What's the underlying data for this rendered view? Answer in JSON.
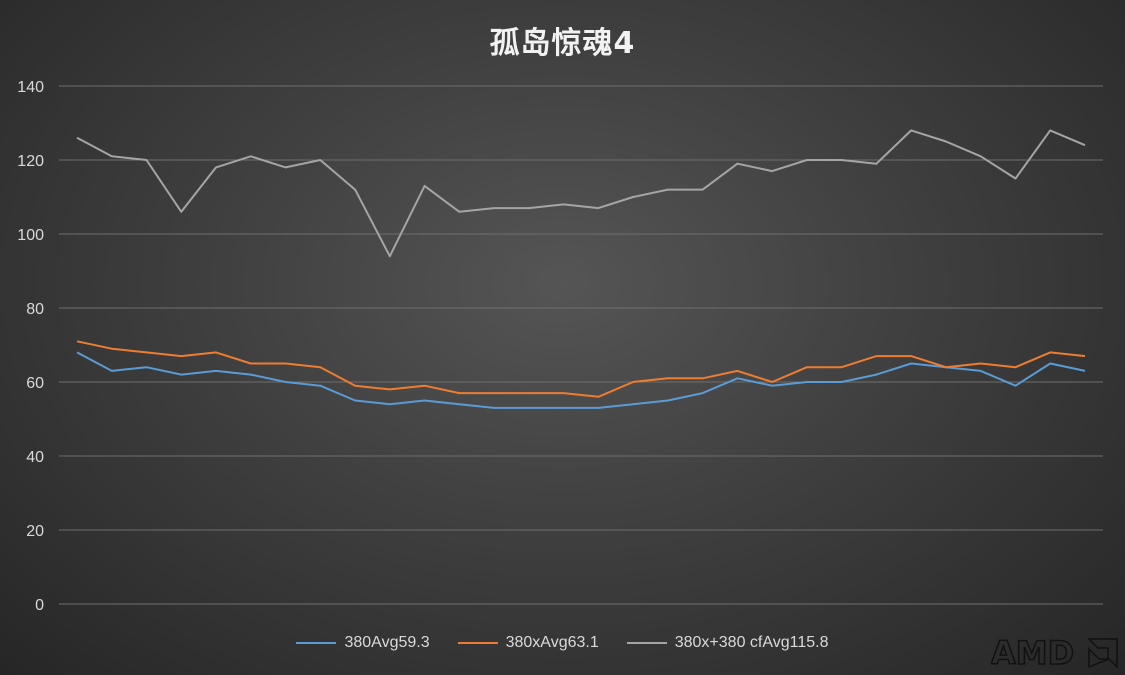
{
  "chart_data": {
    "type": "line",
    "title": "孤岛惊魂4",
    "ylim": [
      0,
      140
    ],
    "yticks": [
      0,
      20,
      40,
      60,
      80,
      100,
      120,
      140
    ],
    "grid": true,
    "legend_position": "bottom",
    "x": [
      1,
      2,
      3,
      4,
      5,
      6,
      7,
      8,
      9,
      10,
      11,
      12,
      13,
      14,
      15,
      16,
      17,
      18,
      19,
      20,
      21,
      22,
      23,
      24,
      25,
      26,
      27,
      28,
      29,
      30
    ],
    "series": [
      {
        "name": "380Avg59.3",
        "color": "#5b9bd5",
        "values": [
          68,
          63,
          64,
          62,
          63,
          62,
          60,
          59,
          55,
          54,
          55,
          54,
          53,
          53,
          53,
          53,
          54,
          55,
          57,
          61,
          59,
          60,
          60,
          62,
          65,
          64,
          63,
          59,
          65,
          63
        ]
      },
      {
        "name": "380xAvg63.1",
        "color": "#ed7d31",
        "values": [
          71,
          69,
          68,
          67,
          68,
          65,
          65,
          64,
          59,
          58,
          59,
          57,
          57,
          57,
          57,
          56,
          60,
          61,
          61,
          63,
          60,
          64,
          64,
          67,
          67,
          64,
          65,
          64,
          68,
          67
        ]
      },
      {
        "name": "380x+380 cfAvg115.8",
        "color": "#a5a5a5",
        "values": [
          126,
          121,
          120,
          106,
          118,
          121,
          118,
          120,
          112,
          94,
          113,
          106,
          107,
          107,
          108,
          107,
          110,
          112,
          112,
          119,
          117,
          120,
          120,
          119,
          128,
          125,
          121,
          115,
          128,
          124
        ]
      }
    ]
  },
  "watermark": {
    "text": "AMD"
  }
}
